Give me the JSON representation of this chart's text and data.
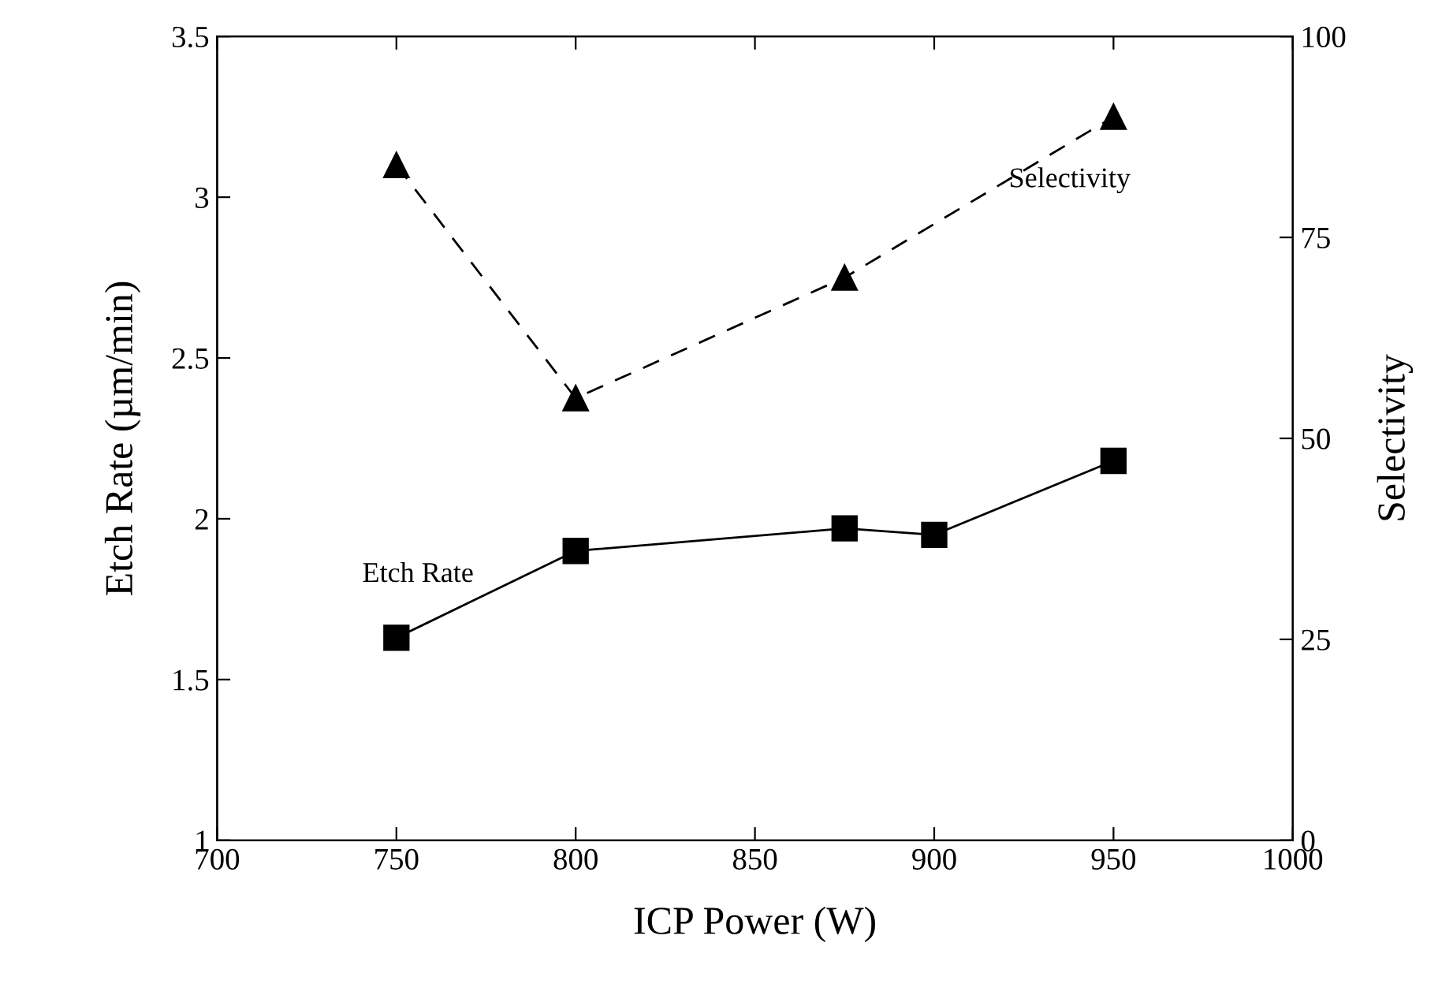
{
  "chart_data": {
    "type": "line",
    "xlabel": "ICP Power (W)",
    "ylabel": "Etch Rate (µm/min)",
    "y2label": "Selectivity",
    "xlim": [
      700,
      1000
    ],
    "xticks": [
      700,
      750,
      800,
      850,
      900,
      950,
      1000
    ],
    "ylim": [
      1,
      3.5
    ],
    "yticks": [
      1,
      1.5,
      2,
      2.5,
      3,
      3.5
    ],
    "y2lim": [
      0,
      100
    ],
    "y2ticks": [
      0,
      25,
      50,
      75,
      100
    ],
    "grid": false,
    "legend": false,
    "series": [
      {
        "name": "Etch Rate",
        "color": "#000000",
        "x": [
          750,
          800,
          875,
          900,
          950
        ],
        "values": [
          1.63,
          1.9,
          1.97,
          1.95,
          2.18
        ],
        "marker": "square",
        "line_style": "solid"
      },
      {
        "name": "Selectivity",
        "color": "#000000",
        "axis": "y2",
        "x": [
          750,
          800,
          875,
          950
        ],
        "values": [
          84,
          55,
          70,
          90
        ],
        "marker": "triangle",
        "line_style": "dashed"
      }
    ]
  }
}
